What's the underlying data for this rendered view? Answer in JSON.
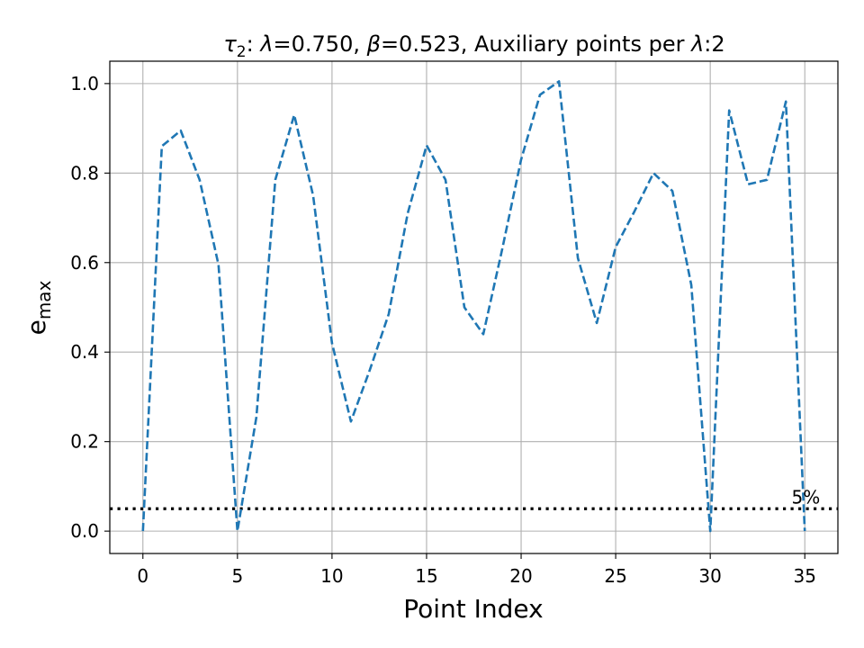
{
  "chart_data": {
    "type": "line",
    "title_parts": {
      "tau": "τ",
      "tau_sub": "2",
      "rest_a": ": ",
      "lambda_sym": "λ",
      "rest_b": "=0.750, ",
      "beta_sym": "β",
      "rest_c": "=0.523, Auxiliary points per ",
      "lambda_sym2": "λ",
      "rest_d": ":2"
    },
    "xlabel": "Point Index",
    "ylabel_base": "e",
    "ylabel_sub": "max",
    "xlim": [
      -1.75,
      36.75
    ],
    "ylim": [
      -0.05,
      1.05
    ],
    "xticks": [
      0,
      5,
      10,
      15,
      20,
      25,
      30,
      35
    ],
    "yticks": [
      0.0,
      0.2,
      0.4,
      0.6,
      0.8,
      1.0
    ],
    "ytick_labels": [
      "0.0",
      "0.2",
      "0.4",
      "0.6",
      "0.8",
      "1.0"
    ],
    "grid": true,
    "series": [
      {
        "color": "#1f77b4",
        "linestyle": "dashed",
        "x": [
          0,
          1,
          2,
          3,
          4,
          5,
          6,
          7,
          8,
          9,
          10,
          11,
          12,
          13,
          14,
          15,
          16,
          17,
          18,
          19,
          20,
          21,
          22,
          23,
          24,
          25,
          26,
          27,
          28,
          29,
          30,
          31,
          32,
          33,
          34,
          35
        ],
        "y": [
          0.0,
          0.86,
          0.895,
          0.785,
          0.595,
          0.0,
          0.255,
          0.785,
          0.93,
          0.75,
          0.42,
          0.245,
          0.36,
          0.485,
          0.71,
          0.862,
          0.785,
          0.5,
          0.44,
          0.63,
          0.83,
          0.975,
          1.005,
          0.61,
          0.465,
          0.635,
          0.715,
          0.8,
          0.76,
          0.55,
          0.0,
          0.94,
          0.775,
          0.785,
          0.96,
          0.0
        ]
      }
    ],
    "threshold_line": {
      "y": 0.05,
      "color": "#000000",
      "linestyle": "dotted",
      "label": "5%"
    }
  }
}
